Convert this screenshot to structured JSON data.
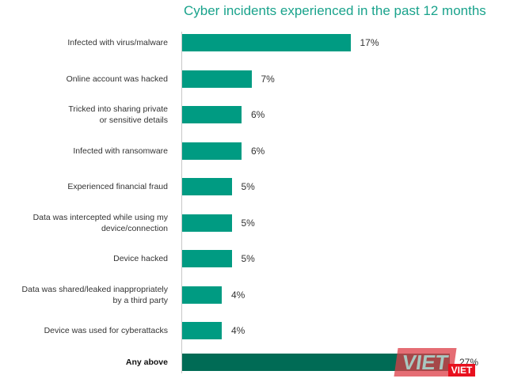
{
  "chart_data": {
    "type": "bar",
    "orientation": "horizontal",
    "title": "Cyber incidents experienced in the past 12 months",
    "xlabel": "",
    "ylabel": "",
    "grid": false,
    "legend": null,
    "categories": [
      "Infected with virus/malware",
      "Online account was hacked",
      "Tricked into sharing private or sensitive details",
      "Infected with ransomware",
      "Experienced financial fraud",
      "Data was intercepted while using my device/connection",
      "Device hacked",
      "Data was shared/leaked inappropriately by a third party",
      "Device was used for cyberattacks",
      "Any above"
    ],
    "values": [
      17,
      7,
      6,
      6,
      5,
      5,
      5,
      4,
      4,
      27
    ],
    "value_labels": [
      "17%",
      "7%",
      "6%",
      "6%",
      "5%",
      "5%",
      "5%",
      "4%",
      "4%",
      "27%"
    ],
    "colors": {
      "bar": "#009b82",
      "total_bar": "#006b55",
      "title": "#1aa38c"
    }
  },
  "rows": [
    {
      "label_lines": [
        "Infected with virus/malware"
      ],
      "value": 17,
      "text": "17%"
    },
    {
      "label_lines": [
        "Online account was hacked"
      ],
      "value": 7,
      "text": "7%"
    },
    {
      "label_lines": [
        "Tricked into sharing private",
        "or sensitive details"
      ],
      "value": 6,
      "text": "6%"
    },
    {
      "label_lines": [
        "Infected with ransomware"
      ],
      "value": 6,
      "text": "6%"
    },
    {
      "label_lines": [
        "Experienced financial fraud"
      ],
      "value": 5,
      "text": "5%"
    },
    {
      "label_lines": [
        "Data was intercepted while using my",
        "device/connection"
      ],
      "value": 5,
      "text": "5%"
    },
    {
      "label_lines": [
        "Device hacked"
      ],
      "value": 5,
      "text": "5%"
    },
    {
      "label_lines": [
        "Data was shared/leaked inappropriately",
        "by a third party"
      ],
      "value": 4,
      "text": "4%"
    },
    {
      "label_lines": [
        "Device was used for cyberattacks"
      ],
      "value": 4,
      "text": "4%"
    },
    {
      "label_lines": [
        "Any above"
      ],
      "value": 27,
      "text": "27%",
      "total": true
    }
  ],
  "watermark": {
    "main": "VIET",
    "small": "VIET"
  }
}
